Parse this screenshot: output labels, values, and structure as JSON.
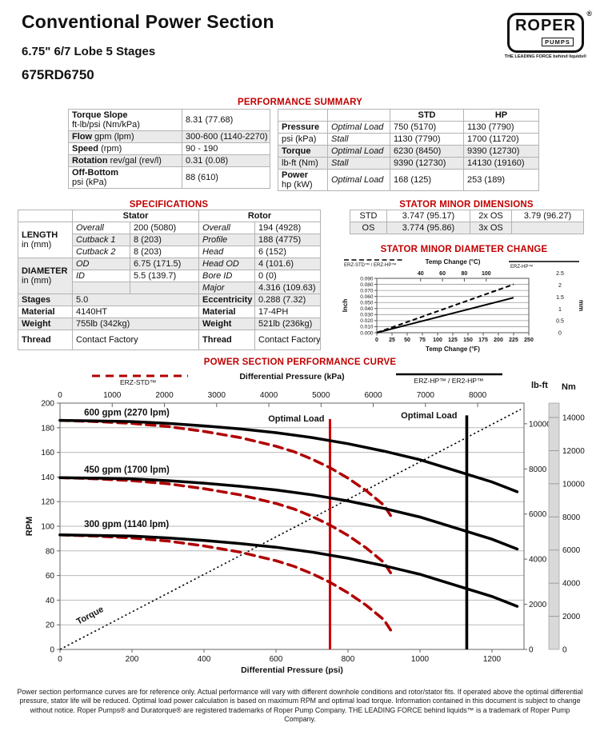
{
  "header": {
    "title": "Conventional Power Section",
    "subtitle": "6.75\" 6/7 Lobe 5 Stages",
    "model": "675RD6750",
    "logo": {
      "brand": "ROPER",
      "sub": "PUMPS",
      "registered": "®",
      "tagline": "THE LEADING FORCE behind liquids®"
    }
  },
  "performance_summary": {
    "heading": "PERFORMANCE SUMMARY",
    "left_table": {
      "rows": [
        {
          "label": "Torque Slope",
          "sub": "ft-lb/psi (Nm/kPa)",
          "value": "8.31 (77.68)",
          "two_line": true
        },
        {
          "label": "Flow",
          "sub": "gpm (lpm)",
          "value": "300-600 (1140-2270)",
          "two_line": false
        },
        {
          "label": "Speed",
          "sub": "(rpm)",
          "value": "90 - 190",
          "two_line": false
        },
        {
          "label": "Rotation",
          "sub": "rev/gal (rev/l)",
          "value": "0.31 (0.08)",
          "two_line": false
        },
        {
          "label": "Off-Bottom",
          "sub": "psi (kPa)",
          "value": "88 (610)",
          "two_line": true
        }
      ]
    },
    "right_table": {
      "col_headers": [
        "",
        "",
        "STD",
        "HP"
      ],
      "rows": [
        [
          "Pressure",
          "Optimal Load",
          "750 (5170)",
          "1130 (7790)"
        ],
        [
          "psi (kPa)",
          "Stall",
          "1130 (7790)",
          "1700 (11720)"
        ],
        [
          "Torque",
          "Optimal Load",
          "6230 (8450)",
          "9390 (12730)"
        ],
        [
          "lb-ft (Nm)",
          "Stall",
          "9390 (12730)",
          "14130 (19160)"
        ],
        [
          "Power\nhp (kW)",
          "Optimal Load",
          "168 (125)",
          "253 (189)"
        ]
      ]
    }
  },
  "specifications": {
    "heading": "SPECIFICATIONS",
    "col_headers": [
      "",
      "Stator",
      "Rotor"
    ],
    "groups": [
      {
        "label": "LENGTH",
        "unit": "in (mm)",
        "rows": [
          [
            "Overall",
            "200 (5080)",
            "Overall",
            "194 (4928)"
          ],
          [
            "Cutback 1",
            "8 (203)",
            "Profile",
            "188 (4775)"
          ],
          [
            "Cutback 2",
            "8 (203)",
            "Head",
            "6 (152)"
          ]
        ]
      },
      {
        "label": "DIAMETER",
        "unit": "in (mm)",
        "rows": [
          [
            "OD",
            "6.75 (171.5)",
            "Head OD",
            "4 (101.6)"
          ],
          [
            "ID",
            "5.5 (139.7)",
            "Bore ID",
            "0 (0)"
          ],
          [
            "",
            "",
            "Major",
            "4.316 (109.63)"
          ]
        ]
      }
    ],
    "simple_rows": [
      {
        "label": "Stages",
        "stator": "5.0",
        "rotor_label": "Eccentricity",
        "rotor": "0.288 (7.32)"
      },
      {
        "label": "Material",
        "stator": "4140HT",
        "rotor_label": "Material",
        "rotor": "17-4PH"
      },
      {
        "label": "Weight",
        "stator": "755lb (342kg)",
        "rotor_label": "Weight",
        "rotor": "521lb (236kg)"
      },
      {
        "label": "Thread",
        "stator": "Contact Factory",
        "rotor_label": "Thread",
        "rotor": "Contact Factory"
      }
    ]
  },
  "stator_minor_dimensions": {
    "heading": "STATOR MINOR DIMENSIONS",
    "rows": [
      [
        "STD",
        "3.747 (95.17)",
        "2x OS",
        "3.79 (96.27)"
      ],
      [
        "OS",
        "3.774 (95.86)",
        "3x OS",
        ""
      ]
    ]
  },
  "chart_data": [
    {
      "id": "stator-minor-diameter-change",
      "type": "line",
      "title": "STATOR MINOR DIAMETER CHANGE",
      "legend": [
        {
          "label": "ERZ-STD™ / ERZ-HP™",
          "style": "dashed",
          "color": "#000000"
        },
        {
          "label": "ERZ-HP™",
          "style": "solid",
          "color": "#000000"
        }
      ],
      "top_axis": {
        "label": "Temp Change (°C)",
        "ticks": [
          40,
          60,
          80,
          100
        ]
      },
      "x_axis": {
        "label": "Temp Change (°F)",
        "min": 0,
        "max": 250,
        "ticks": [
          0,
          25,
          50,
          75,
          100,
          125,
          150,
          175,
          200,
          225,
          250
        ]
      },
      "y_axis": {
        "label": "Inch",
        "min": 0,
        "max": 0.09,
        "ticks": [
          "0.000",
          "0.010",
          "0.020",
          "0.030",
          "0.040",
          "0.050",
          "0.060",
          "0.070",
          "0.080",
          "0.090"
        ]
      },
      "y2_axis": {
        "label": "mm",
        "ticks": [
          0,
          0.5,
          1,
          1.5,
          2,
          2.5
        ]
      },
      "grid": "horizontal",
      "series": [
        {
          "name": "ERZ-STD™ / ERZ-HP™",
          "style": "dashed",
          "color": "#000000",
          "points": [
            [
              0,
              0
            ],
            [
              225,
              0.08
            ]
          ]
        },
        {
          "name": "ERZ-HP™",
          "style": "solid",
          "color": "#000000",
          "points": [
            [
              0,
              0
            ],
            [
              225,
              0.058
            ]
          ]
        }
      ]
    },
    {
      "id": "power-section-performance-curve",
      "type": "line",
      "title": "POWER SECTION PERFORMANCE CURVE",
      "legend": [
        {
          "label": "ERZ-STD™",
          "style": "dashed",
          "color": "#b00000"
        },
        {
          "label": "ERZ-HP™ / ER2-HP™",
          "style": "solid",
          "color": "#000000"
        }
      ],
      "top_axis": {
        "label": "Differential Pressure (kPa)",
        "ticks": [
          0,
          1000,
          2000,
          3000,
          4000,
          5000,
          6000,
          7000,
          8000
        ]
      },
      "x_axis": {
        "label": "Differential Pressure (psi)",
        "min": 0,
        "max": 1289,
        "ticks": [
          0,
          200,
          400,
          600,
          800,
          1000,
          1200
        ]
      },
      "y_axis": {
        "label": "RPM",
        "min": 0,
        "max": 200,
        "ticks": [
          0,
          20,
          40,
          60,
          80,
          100,
          120,
          140,
          160,
          180,
          200
        ]
      },
      "torque_axis_lbft": {
        "label": "lb-ft",
        "min": 0,
        "max": 10915,
        "ticks": [
          0,
          2000,
          4000,
          6000,
          8000,
          10000
        ]
      },
      "torque_axis_nm": {
        "label": "Nm",
        "min": 0,
        "max": 14870,
        "ticks": [
          0,
          2000,
          4000,
          6000,
          8000,
          10000,
          12000,
          14000
        ]
      },
      "torque_line": {
        "label": "Torque",
        "slope_lbft_per_psi": 8.31,
        "points_psi_lbft": [
          [
            0,
            0
          ],
          [
            1280,
            10637
          ]
        ]
      },
      "optimal_load_lines": [
        {
          "label": "Optimal Load",
          "psi": 750,
          "color": "#cc0000",
          "top_rpm": 187
        },
        {
          "label": "Optimal Load",
          "psi": 1130,
          "color": "#000000",
          "top_rpm": 190
        }
      ],
      "series": [
        {
          "name": "600 gpm ERZ-STD",
          "style": "dashed",
          "color": "#b00000",
          "points": [
            [
              0,
              186
            ],
            [
              100,
              185
            ],
            [
              200,
              183.5
            ],
            [
              300,
              181
            ],
            [
              400,
              177
            ],
            [
              500,
              172
            ],
            [
              600,
              165
            ],
            [
              650,
              160.5
            ],
            [
              700,
              154.5
            ],
            [
              750,
              147.5
            ],
            [
              800,
              139
            ],
            [
              850,
              129
            ],
            [
              900,
              117
            ],
            [
              920,
              108
            ]
          ]
        },
        {
          "name": "450 gpm ERZ-STD",
          "style": "dashed",
          "color": "#b00000",
          "points": [
            [
              0,
              139.5
            ],
            [
              100,
              138.5
            ],
            [
              200,
              137
            ],
            [
              300,
              134.5
            ],
            [
              400,
              130.5
            ],
            [
              500,
              125.5
            ],
            [
              600,
              118.5
            ],
            [
              650,
              114
            ],
            [
              700,
              108
            ],
            [
              750,
              101
            ],
            [
              800,
              92.5
            ],
            [
              850,
              82.5
            ],
            [
              900,
              70.5
            ],
            [
              920,
              61.5
            ]
          ]
        },
        {
          "name": "300 gpm ERZ-STD",
          "style": "dashed",
          "color": "#b00000",
          "points": [
            [
              0,
              93
            ],
            [
              100,
              92
            ],
            [
              200,
              90.5
            ],
            [
              300,
              88
            ],
            [
              400,
              84
            ],
            [
              500,
              79
            ],
            [
              600,
              72
            ],
            [
              650,
              67.5
            ],
            [
              700,
              61.5
            ],
            [
              750,
              54.5
            ],
            [
              800,
              46
            ],
            [
              850,
              36
            ],
            [
              900,
              24
            ],
            [
              920,
              15
            ]
          ]
        },
        {
          "name": "600 gpm ERZ-HP",
          "style": "solid",
          "color": "#000000",
          "flow_label": "600 gpm (2270 lpm)",
          "label_at": [
            67,
            190
          ],
          "points": [
            [
              0,
              186
            ],
            [
              100,
              185.5
            ],
            [
              200,
              185
            ],
            [
              300,
              183.5
            ],
            [
              400,
              181.5
            ],
            [
              500,
              179
            ],
            [
              600,
              176
            ],
            [
              700,
              172
            ],
            [
              800,
              167
            ],
            [
              900,
              161
            ],
            [
              1000,
              154
            ],
            [
              1100,
              145
            ],
            [
              1200,
              136
            ],
            [
              1270,
              128
            ]
          ]
        },
        {
          "name": "450 gpm ERZ-HP",
          "style": "solid",
          "color": "#000000",
          "flow_label": "450 gpm (1700 lpm)",
          "label_at": [
            67,
            143.5
          ],
          "points": [
            [
              0,
              139.5
            ],
            [
              100,
              139
            ],
            [
              200,
              138.5
            ],
            [
              300,
              137
            ],
            [
              400,
              135
            ],
            [
              500,
              132.5
            ],
            [
              600,
              129.5
            ],
            [
              700,
              125.5
            ],
            [
              800,
              120.5
            ],
            [
              900,
              114.5
            ],
            [
              1000,
              107.5
            ],
            [
              1100,
              98.5
            ],
            [
              1200,
              89.5
            ],
            [
              1270,
              81.5
            ]
          ]
        },
        {
          "name": "300 gpm ERZ-HP",
          "style": "solid",
          "color": "#000000",
          "flow_label": "300 gpm (1140 lpm)",
          "label_at": [
            67,
            99.5
          ],
          "points": [
            [
              0,
              93
            ],
            [
              100,
              92.5
            ],
            [
              200,
              92
            ],
            [
              300,
              90.5
            ],
            [
              400,
              88.5
            ],
            [
              500,
              86
            ],
            [
              600,
              83
            ],
            [
              700,
              79
            ],
            [
              800,
              74
            ],
            [
              900,
              68
            ],
            [
              1000,
              61
            ],
            [
              1100,
              52
            ],
            [
              1200,
              43
            ],
            [
              1270,
              35
            ]
          ]
        }
      ]
    }
  ],
  "footer": {
    "text": "Power section performance curves are for reference only. Actual performance will vary with different downhole conditions and rotor/stator fits. If operated above the optimal differential pressure, stator life will be reduced. Optimal load power calculation is based on maximum RPM and optimal load torque. Information contained in this document is subject to change without notice. Roper Pumps® and Duratorque® are registered trademarks of Roper Pump Company. THE LEADING FORCE behind liquids™ is a trademark of Roper Pump Company."
  }
}
